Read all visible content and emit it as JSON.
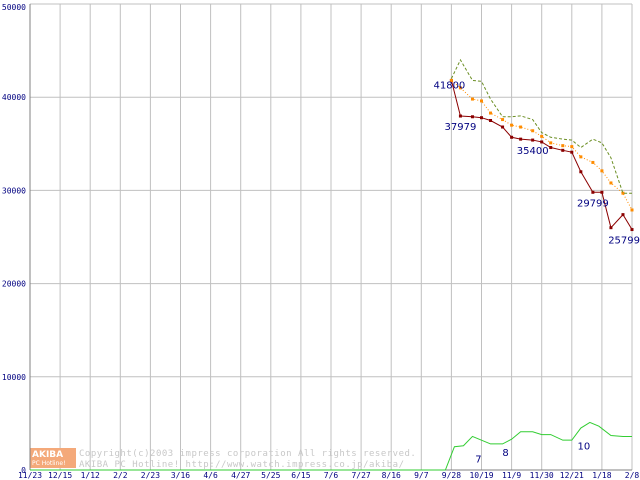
{
  "chart_data": {
    "type": "line",
    "title": "",
    "xlabel": "",
    "ylabel": "",
    "ylim": [
      0,
      50000
    ],
    "grid": true,
    "x_tick_labels": [
      "11/23",
      "12/15",
      "1/12",
      "2/2",
      "2/23",
      "3/16",
      "4/6",
      "4/27",
      "5/25",
      "6/15",
      "7/6",
      "7/27",
      "8/16",
      "9/7",
      "9/28",
      "10/19",
      "11/9",
      "11/30",
      "12/21",
      "1/18",
      "2/8"
    ],
    "y_tick_labels": [
      "0",
      "10000",
      "20000",
      "30000",
      "40000",
      "50000"
    ],
    "y_ticks": [
      0,
      10000,
      20000,
      30000,
      40000,
      50000
    ],
    "series": [
      {
        "name": "",
        "color": "#8b0000",
        "style": "solid-markers",
        "points": [
          [
            14,
            41800
          ],
          [
            14.3,
            37979
          ],
          [
            14.7,
            37900
          ],
          [
            15,
            37800
          ],
          [
            15.3,
            37500
          ],
          [
            15.7,
            36800
          ],
          [
            16,
            35700
          ],
          [
            16.3,
            35500
          ],
          [
            16.7,
            35400
          ],
          [
            17,
            35200
          ],
          [
            17.3,
            34600
          ],
          [
            17.7,
            34300
          ],
          [
            18,
            34100
          ],
          [
            18.3,
            32000
          ],
          [
            18.7,
            29799
          ],
          [
            19,
            29800
          ],
          [
            19.3,
            26000
          ],
          [
            19.7,
            27400
          ],
          [
            20,
            25799
          ]
        ]
      },
      {
        "name": "",
        "color": "#ff8c00",
        "style": "dotted-markers",
        "points": [
          [
            14,
            41800
          ],
          [
            14.3,
            41000
          ],
          [
            14.7,
            39800
          ],
          [
            15,
            39600
          ],
          [
            15.3,
            38300
          ],
          [
            15.7,
            37600
          ],
          [
            16,
            37000
          ],
          [
            16.3,
            36800
          ],
          [
            16.7,
            36400
          ],
          [
            17,
            35800
          ],
          [
            17.3,
            35100
          ],
          [
            17.7,
            34800
          ],
          [
            18,
            34700
          ],
          [
            18.3,
            33600
          ],
          [
            18.7,
            33000
          ],
          [
            19,
            32100
          ],
          [
            19.3,
            30800
          ],
          [
            19.7,
            29700
          ],
          [
            20,
            27900
          ]
        ]
      },
      {
        "name": "",
        "color": "#6b8e23",
        "style": "dashed",
        "points": [
          [
            14,
            42000
          ],
          [
            14.3,
            44000
          ],
          [
            14.7,
            41800
          ],
          [
            15,
            41700
          ],
          [
            15.3,
            39800
          ],
          [
            15.7,
            37900
          ],
          [
            16,
            37900
          ],
          [
            16.3,
            38000
          ],
          [
            16.7,
            37600
          ],
          [
            17,
            36200
          ],
          [
            17.3,
            35700
          ],
          [
            17.7,
            35500
          ],
          [
            18,
            35400
          ],
          [
            18.3,
            34600
          ],
          [
            18.7,
            35500
          ],
          [
            19,
            35100
          ],
          [
            19.3,
            33500
          ],
          [
            19.7,
            29700
          ],
          [
            20,
            29700
          ]
        ]
      },
      {
        "name": "",
        "color": "#32cd32",
        "style": "solid",
        "points": [
          [
            0,
            0
          ],
          [
            13.8,
            0
          ],
          [
            14.1,
            2500
          ],
          [
            14.4,
            2600
          ],
          [
            14.7,
            3600
          ],
          [
            15,
            3200
          ],
          [
            15.3,
            2800
          ],
          [
            15.7,
            2800
          ],
          [
            16,
            3300
          ],
          [
            16.3,
            4100
          ],
          [
            16.7,
            4100
          ],
          [
            17,
            3800
          ],
          [
            17.3,
            3800
          ],
          [
            17.7,
            3200
          ],
          [
            18,
            3200
          ],
          [
            18.3,
            4500
          ],
          [
            18.6,
            5100
          ],
          [
            18.9,
            4700
          ],
          [
            19.3,
            3700
          ],
          [
            19.7,
            3600
          ],
          [
            20,
            3600
          ]
        ]
      }
    ],
    "data_labels": [
      {
        "text": "41800",
        "x": 14,
        "y": 41800
      },
      {
        "text": "37979",
        "x": 14.3,
        "y": 37979
      },
      {
        "text": "35400",
        "x": 16.7,
        "y": 35400
      },
      {
        "text": "29799",
        "x": 18.7,
        "y": 29799
      },
      {
        "text": "25799",
        "x": 20,
        "y": 25799
      },
      {
        "text": "7",
        "x": 14.9,
        "y": 2300
      },
      {
        "text": "8",
        "x": 15.8,
        "y": 3000
      },
      {
        "text": "10",
        "x": 18.4,
        "y": 3700
      }
    ]
  },
  "watermark": {
    "logo_text": "AKIBA",
    "logo_sub": "PC Hotline!",
    "line1": "Copyright(c)2003 impress corporation All rights reserved.",
    "line2": "AKIBA PC Hotline! http://www.watch.impress.co.jp/akiba/"
  },
  "colors": {
    "grid": "#c0c0c0",
    "axis": "#808080",
    "tick_text": "#000080",
    "logo_bg": "#f4a97a"
  }
}
